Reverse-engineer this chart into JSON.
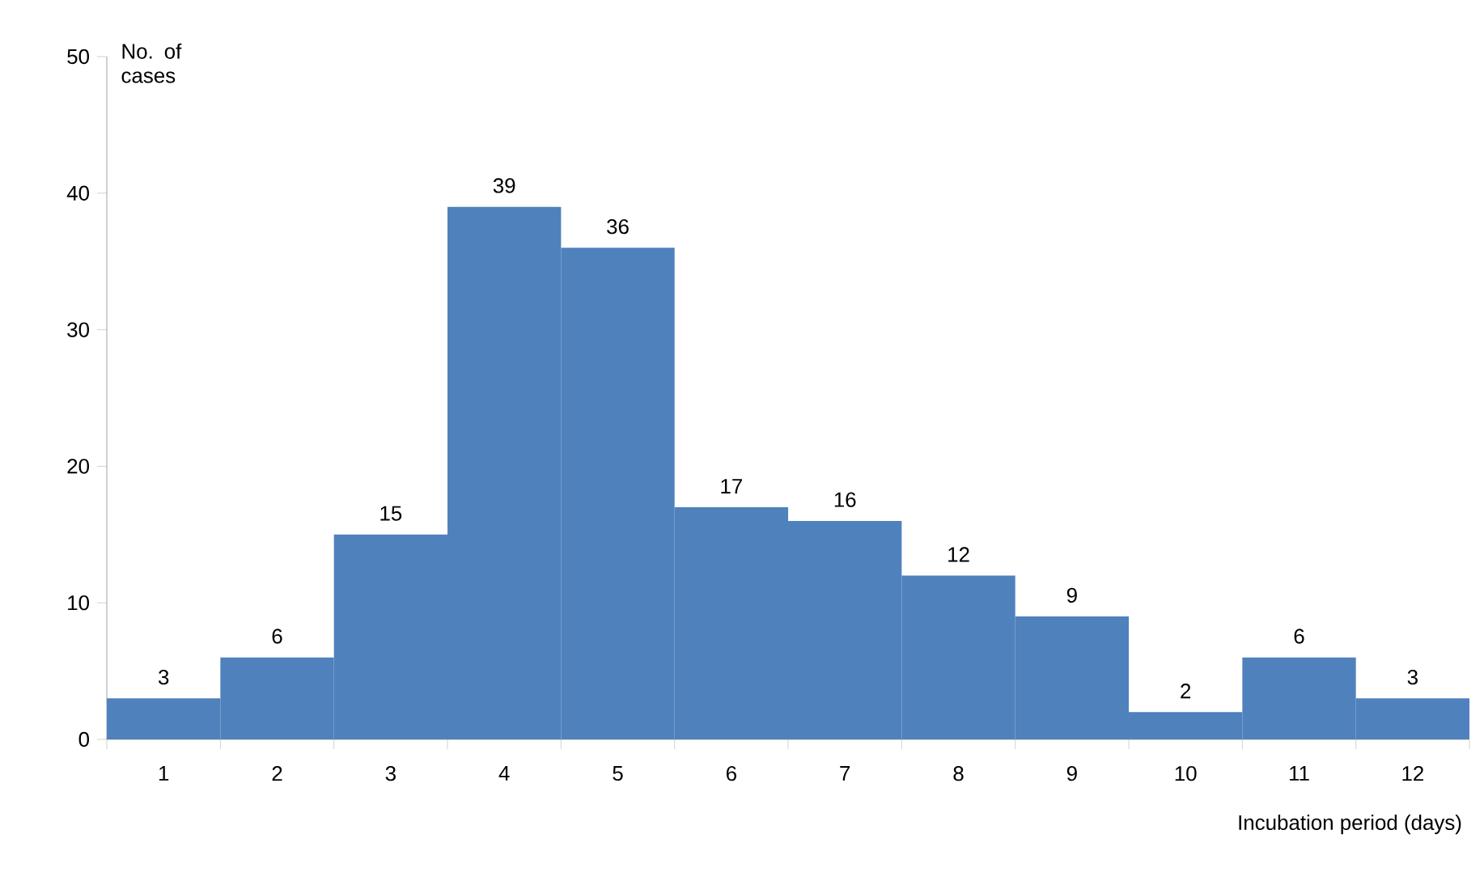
{
  "chart_data": {
    "type": "bar",
    "xlabel": "Incubation period (days)",
    "ylabel": "No. of cases",
    "categories": [
      "1",
      "2",
      "3",
      "4",
      "5",
      "6",
      "7",
      "8",
      "9",
      "10",
      "11",
      "12"
    ],
    "values": [
      3,
      6,
      15,
      39,
      36,
      17,
      16,
      12,
      9,
      2,
      6,
      3
    ],
    "color": "#4f81bd",
    "ylim": [
      0,
      50
    ],
    "yticks": [
      0,
      10,
      20,
      30,
      40,
      50
    ],
    "data_labels": true,
    "grid": false
  }
}
